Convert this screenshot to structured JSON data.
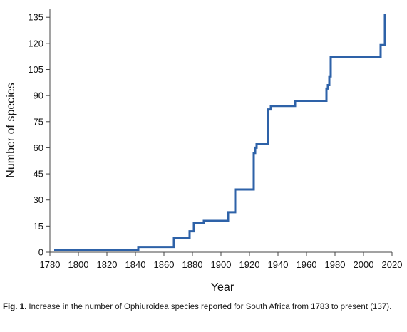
{
  "chart_data": {
    "type": "line",
    "line_shape": "step",
    "xlabel": "Year",
    "ylabel": "Number of species",
    "xlim": [
      1780,
      2020
    ],
    "ylim": [
      0,
      140
    ],
    "x_ticks": [
      1780,
      1800,
      1820,
      1840,
      1860,
      1880,
      1900,
      1920,
      1940,
      1960,
      1980,
      2000,
      2020
    ],
    "y_ticks": [
      0,
      15,
      30,
      45,
      60,
      75,
      90,
      105,
      120,
      135
    ],
    "grid": false,
    "legend": "none",
    "line_color": "#2e62a8",
    "series": [
      {
        "x": [
          1783,
          1842,
          1867,
          1878,
          1881,
          1888,
          1905,
          1910,
          1923,
          1924,
          1925,
          1933,
          1935,
          1952,
          1974,
          1975,
          1976,
          1977,
          2012,
          2014,
          2015
        ],
        "y": [
          1,
          3,
          8,
          12,
          17,
          18,
          23,
          36,
          57,
          60,
          62,
          82,
          84,
          87,
          94,
          96,
          101,
          112,
          119,
          119,
          137
        ]
      }
    ]
  },
  "caption": {
    "label": "Fig. 1",
    "text": ". Increase in the number of Ophiuroidea species reported for South Africa from 1783 to present (137)."
  }
}
